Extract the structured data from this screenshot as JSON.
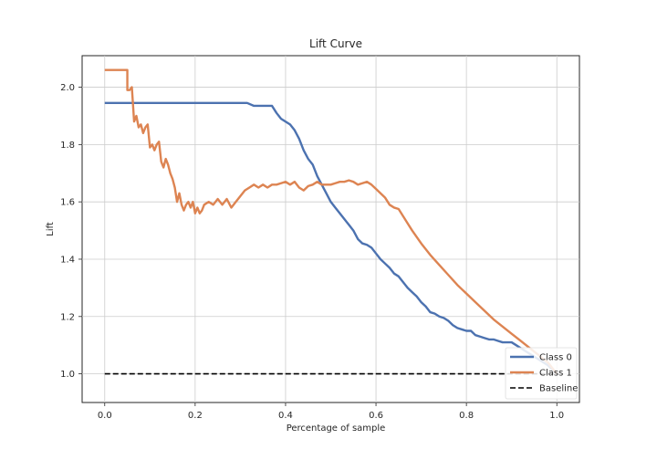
{
  "chart_data": {
    "type": "line",
    "title": "Lift Curve",
    "xlabel": "Percentage of sample",
    "ylabel": "Lift",
    "xlim": [
      -0.05,
      1.05
    ],
    "ylim": [
      0.9,
      2.11
    ],
    "xticks": [
      0.0,
      0.2,
      0.4,
      0.6,
      0.8,
      1.0
    ],
    "xtick_labels": [
      "0.0",
      "0.2",
      "0.4",
      "0.6",
      "0.8",
      "1.0"
    ],
    "yticks": [
      1.0,
      1.2,
      1.4,
      1.6,
      1.8,
      2.0
    ],
    "ytick_labels": [
      "1.0",
      "1.2",
      "1.4",
      "1.6",
      "1.8",
      "2.0"
    ],
    "grid": true,
    "legend_position": "lower right",
    "series": [
      {
        "name": "Class 0",
        "color": "#4c72b0",
        "x": [
          0.0,
          0.05,
          0.1,
          0.15,
          0.2,
          0.25,
          0.3,
          0.315,
          0.33,
          0.35,
          0.37,
          0.38,
          0.39,
          0.4,
          0.41,
          0.42,
          0.43,
          0.44,
          0.45,
          0.46,
          0.47,
          0.48,
          0.49,
          0.5,
          0.51,
          0.52,
          0.53,
          0.54,
          0.55,
          0.56,
          0.57,
          0.58,
          0.59,
          0.6,
          0.61,
          0.62,
          0.63,
          0.64,
          0.65,
          0.66,
          0.67,
          0.68,
          0.69,
          0.7,
          0.71,
          0.72,
          0.73,
          0.74,
          0.75,
          0.76,
          0.77,
          0.78,
          0.79,
          0.8,
          0.81,
          0.82,
          0.83,
          0.84,
          0.85,
          0.86,
          0.87,
          0.88,
          0.89,
          0.9,
          0.91,
          0.92,
          0.93,
          0.94,
          0.95,
          0.96,
          0.97,
          0.98,
          0.99,
          1.0
        ],
        "y": [
          1.945,
          1.945,
          1.945,
          1.945,
          1.945,
          1.945,
          1.945,
          1.945,
          1.935,
          1.935,
          1.935,
          1.91,
          1.89,
          1.88,
          1.87,
          1.85,
          1.82,
          1.78,
          1.75,
          1.73,
          1.69,
          1.66,
          1.63,
          1.6,
          1.58,
          1.56,
          1.54,
          1.52,
          1.5,
          1.47,
          1.455,
          1.45,
          1.44,
          1.42,
          1.4,
          1.385,
          1.37,
          1.35,
          1.34,
          1.32,
          1.3,
          1.285,
          1.27,
          1.25,
          1.235,
          1.215,
          1.21,
          1.2,
          1.195,
          1.185,
          1.17,
          1.16,
          1.155,
          1.15,
          1.15,
          1.135,
          1.13,
          1.125,
          1.12,
          1.12,
          1.115,
          1.11,
          1.11,
          1.11,
          1.1,
          1.09,
          1.08,
          1.07,
          1.06,
          1.05,
          1.04,
          1.03,
          1.015,
          1.0
        ]
      },
      {
        "name": "Class 1",
        "color": "#dd8452",
        "x": [
          0.0,
          0.05,
          0.05,
          0.055,
          0.06,
          0.065,
          0.07,
          0.075,
          0.08,
          0.085,
          0.09,
          0.095,
          0.1,
          0.105,
          0.11,
          0.115,
          0.12,
          0.125,
          0.13,
          0.135,
          0.14,
          0.145,
          0.15,
          0.155,
          0.16,
          0.165,
          0.17,
          0.175,
          0.18,
          0.185,
          0.19,
          0.195,
          0.2,
          0.205,
          0.21,
          0.215,
          0.22,
          0.23,
          0.24,
          0.25,
          0.26,
          0.27,
          0.28,
          0.29,
          0.3,
          0.31,
          0.32,
          0.33,
          0.34,
          0.35,
          0.36,
          0.37,
          0.38,
          0.39,
          0.4,
          0.41,
          0.42,
          0.43,
          0.44,
          0.45,
          0.46,
          0.47,
          0.48,
          0.49,
          0.5,
          0.51,
          0.52,
          0.53,
          0.54,
          0.55,
          0.56,
          0.57,
          0.58,
          0.59,
          0.6,
          0.61,
          0.62,
          0.63,
          0.64,
          0.65,
          0.66,
          0.67,
          0.68,
          0.7,
          0.72,
          0.74,
          0.76,
          0.78,
          0.8,
          0.82,
          0.84,
          0.86,
          0.88,
          0.9,
          0.92,
          0.94,
          0.96,
          0.98,
          1.0
        ],
        "y": [
          2.06,
          2.06,
          1.99,
          1.99,
          2.0,
          1.88,
          1.9,
          1.86,
          1.87,
          1.84,
          1.86,
          1.87,
          1.79,
          1.8,
          1.78,
          1.8,
          1.81,
          1.74,
          1.72,
          1.75,
          1.73,
          1.7,
          1.68,
          1.65,
          1.6,
          1.63,
          1.59,
          1.57,
          1.59,
          1.6,
          1.58,
          1.6,
          1.56,
          1.58,
          1.56,
          1.57,
          1.59,
          1.6,
          1.59,
          1.61,
          1.59,
          1.61,
          1.58,
          1.6,
          1.62,
          1.64,
          1.65,
          1.66,
          1.65,
          1.66,
          1.65,
          1.66,
          1.66,
          1.665,
          1.67,
          1.66,
          1.67,
          1.65,
          1.64,
          1.655,
          1.66,
          1.67,
          1.66,
          1.66,
          1.66,
          1.665,
          1.67,
          1.67,
          1.675,
          1.67,
          1.66,
          1.665,
          1.67,
          1.66,
          1.645,
          1.63,
          1.615,
          1.59,
          1.58,
          1.575,
          1.55,
          1.525,
          1.5,
          1.455,
          1.415,
          1.38,
          1.345,
          1.31,
          1.28,
          1.25,
          1.22,
          1.19,
          1.165,
          1.14,
          1.115,
          1.09,
          1.065,
          1.04,
          1.0
        ]
      },
      {
        "name": "Baseline",
        "color": "#000000",
        "dashed": true,
        "x": [
          0.0,
          1.0
        ],
        "y": [
          1.0,
          1.0
        ]
      }
    ]
  }
}
